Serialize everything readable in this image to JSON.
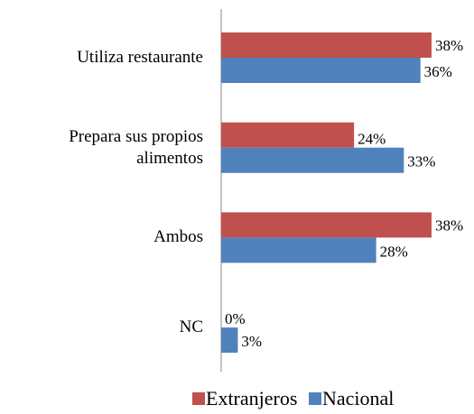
{
  "chart_data": {
    "type": "bar",
    "orientation": "horizontal",
    "categories": [
      "Utiliza restaurante",
      "Prepara sus propios alimentos",
      "Ambos",
      "NC"
    ],
    "series": [
      {
        "name": "Extranjeros",
        "color": "#c0504d",
        "values": [
          38,
          24,
          38,
          0
        ],
        "value_labels": [
          "38%",
          "24%",
          "38%",
          "0%"
        ]
      },
      {
        "name": "Nacional",
        "color": "#4f81bd",
        "values": [
          36,
          33,
          28,
          3
        ],
        "value_labels": [
          "36%",
          "33%",
          "28%",
          "3%"
        ]
      }
    ],
    "legend": "bottom"
  }
}
